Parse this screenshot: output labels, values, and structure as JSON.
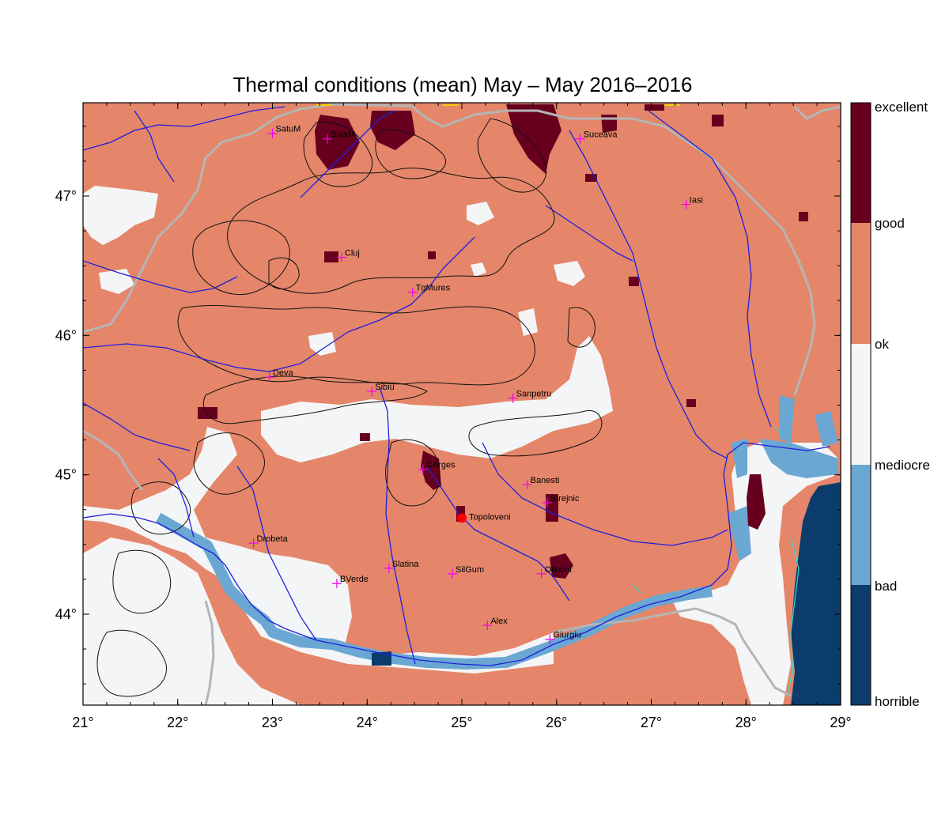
{
  "title": "Thermal conditions (mean) May – May  2016–2016",
  "colors": {
    "excellent": "#67001f",
    "good": "#e5866a",
    "ok": "#f7f7f7",
    "mediocre": "#74a9cf",
    "bad": "#5a9fcf",
    "horrible": "#0b3c6b",
    "river": "#1f1fdd",
    "border": "#b5b5b5",
    "city_marker": "#ee00ee",
    "highlight_point": "#ff0000"
  },
  "x_ticks": [
    "21°",
    "22°",
    "23°",
    "24°",
    "25°",
    "26°",
    "27°",
    "28°",
    "29°"
  ],
  "y_ticks": [
    "47°",
    "46°",
    "45°",
    "44°"
  ],
  "legend": {
    "labels": [
      "excellent",
      "good",
      "ok",
      "mediocre",
      "bad",
      "horrible"
    ]
  },
  "cities": [
    {
      "name": "SatuM",
      "lon": 23.0,
      "lat": 47.45
    },
    {
      "name": "BaiaM",
      "lon": 23.58,
      "lat": 47.41
    },
    {
      "name": "Suceava",
      "lon": 26.25,
      "lat": 47.41
    },
    {
      "name": "Iasi",
      "lon": 27.37,
      "lat": 46.94
    },
    {
      "name": "Cluj",
      "lon": 23.73,
      "lat": 46.56
    },
    {
      "name": "TgMures",
      "lon": 24.48,
      "lat": 46.31
    },
    {
      "name": "Deva",
      "lon": 22.97,
      "lat": 45.7
    },
    {
      "name": "Sibiu",
      "lon": 24.05,
      "lat": 45.6
    },
    {
      "name": "Sanpetru",
      "lon": 25.54,
      "lat": 45.55
    },
    {
      "name": "CArges",
      "lon": 24.59,
      "lat": 45.04
    },
    {
      "name": "Banesti",
      "lon": 25.69,
      "lat": 44.93
    },
    {
      "name": "Strejnic",
      "lon": 25.9,
      "lat": 44.8
    },
    {
      "name": "Drobeta",
      "lon": 22.8,
      "lat": 44.51
    },
    {
      "name": "Slatina",
      "lon": 24.23,
      "lat": 44.33
    },
    {
      "name": "SilGum",
      "lon": 24.9,
      "lat": 44.29
    },
    {
      "name": "Olinoni",
      "lon": 25.84,
      "lat": 44.29
    },
    {
      "name": "BVerde",
      "lon": 23.68,
      "lat": 44.22
    },
    {
      "name": "Alex",
      "lon": 25.27,
      "lat": 43.92
    },
    {
      "name": "Giurgiu",
      "lon": 25.93,
      "lat": 43.82
    }
  ],
  "highlight": {
    "name": "Topoloveni",
    "lon": 25.0,
    "lat": 44.69
  }
}
